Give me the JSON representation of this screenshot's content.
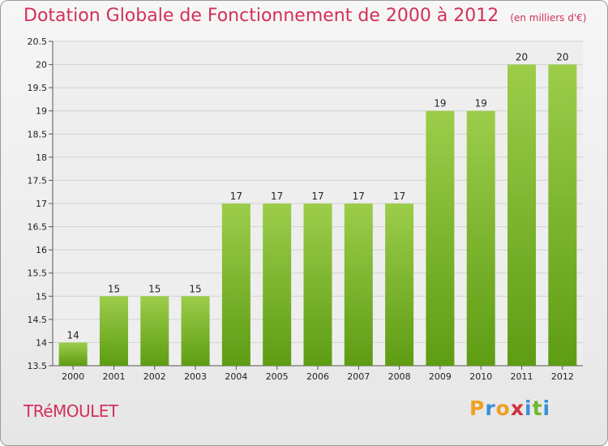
{
  "title": "Dotation Globale de Fonctionnement de 2000 à 2012",
  "unit": "(en milliers d'€)",
  "commune": "TRéMOULET",
  "logo": {
    "letters": [
      "P",
      "r",
      "o",
      "x",
      "i",
      "t",
      "i"
    ],
    "colors": [
      "#f0a020",
      "#3a8fd8",
      "#f0a020",
      "#d23040",
      "#3a8fd8",
      "#70b82c",
      "#3a8fd8"
    ]
  },
  "colors": {
    "bar_top": "#9ccd4a",
    "bar_bottom": "#5e9c14",
    "title": "#d2305a"
  },
  "chart_data": {
    "type": "bar",
    "categories": [
      "2000",
      "2001",
      "2002",
      "2003",
      "2004",
      "2005",
      "2006",
      "2007",
      "2008",
      "2009",
      "2010",
      "2011",
      "2012"
    ],
    "values": [
      14,
      15,
      15,
      15,
      17,
      17,
      17,
      17,
      17,
      19,
      19,
      20,
      20
    ],
    "ylim": [
      13.5,
      20.5
    ],
    "yticks": [
      "13.5",
      "14",
      "14.5",
      "15",
      "15.5",
      "16",
      "16.5",
      "17",
      "17.5",
      "18",
      "18.5",
      "19",
      "19.5",
      "20",
      "20.5"
    ],
    "grid": true
  }
}
